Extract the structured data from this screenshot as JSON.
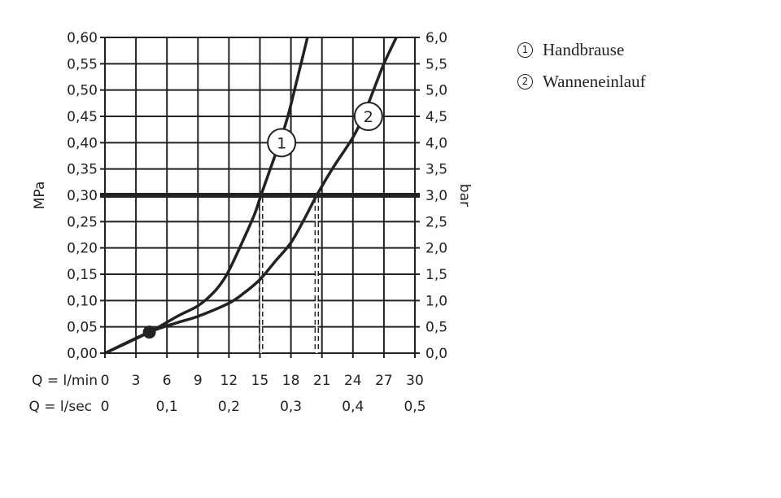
{
  "chart_data": {
    "type": "line",
    "ylabel": "MPa",
    "y2label": "bar",
    "xlabel_rows": [
      "Q = l/min",
      "Q = l/sec"
    ],
    "xlim": [
      0,
      30
    ],
    "ylim": [
      0,
      0.6
    ],
    "grid": true,
    "x_ticks": [
      "0",
      "3",
      "6",
      "9",
      "12",
      "15",
      "18",
      "21",
      "24",
      "27",
      "30"
    ],
    "x2_ticks": [
      {
        "at": 0,
        "label": "0"
      },
      {
        "at": 6,
        "label": "0,1"
      },
      {
        "at": 12,
        "label": "0,2"
      },
      {
        "at": 18,
        "label": "0,3"
      },
      {
        "at": 24,
        "label": "0,4"
      },
      {
        "at": 30,
        "label": "0,5"
      }
    ],
    "y_ticks": [
      "0,00",
      "0,05",
      "0,10",
      "0,15",
      "0,20",
      "0,25",
      "0,30",
      "0,35",
      "0,40",
      "0,45",
      "0,50",
      "0,55",
      "0,60"
    ],
    "y2_ticks": [
      "0,0",
      "0,5",
      "1,0",
      "1,5",
      "2,0",
      "2,5",
      "3,0",
      "3,5",
      "4,0",
      "4,5",
      "5,0",
      "5,5",
      "6,0"
    ],
    "reference_line": 0.3,
    "marker_point": [
      4.3,
      0.04
    ],
    "series": [
      {
        "name": "1",
        "label_at": [
          17.1,
          0.4
        ],
        "drop_at": 15.1,
        "points": [
          [
            0,
            0
          ],
          [
            4.3,
            0.04
          ],
          [
            7,
            0.07
          ],
          [
            9,
            0.09
          ],
          [
            10.5,
            0.115
          ],
          [
            11.5,
            0.14
          ],
          [
            12.2,
            0.165
          ],
          [
            13.5,
            0.22
          ],
          [
            14.5,
            0.265
          ],
          [
            15.1,
            0.3
          ],
          [
            16,
            0.35
          ],
          [
            16.9,
            0.4
          ],
          [
            17.7,
            0.45
          ],
          [
            18.6,
            0.52
          ],
          [
            19.6,
            0.6
          ]
        ]
      },
      {
        "name": "2",
        "label_at": [
          25.5,
          0.45
        ],
        "drop_at": 20.5,
        "points": [
          [
            0,
            0
          ],
          [
            4.3,
            0.04
          ],
          [
            7,
            0.058
          ],
          [
            9,
            0.07
          ],
          [
            12,
            0.095
          ],
          [
            13.5,
            0.115
          ],
          [
            15,
            0.14
          ],
          [
            16.5,
            0.175
          ],
          [
            18,
            0.21
          ],
          [
            19.3,
            0.255
          ],
          [
            20.5,
            0.3
          ],
          [
            22,
            0.35
          ],
          [
            24,
            0.41
          ],
          [
            25,
            0.45
          ],
          [
            26,
            0.5
          ],
          [
            27,
            0.55
          ],
          [
            28.2,
            0.6
          ]
        ]
      }
    ]
  },
  "legend": [
    {
      "num": "1",
      "label": "Handbrause"
    },
    {
      "num": "2",
      "label": "Wanneneinlauf"
    }
  ]
}
